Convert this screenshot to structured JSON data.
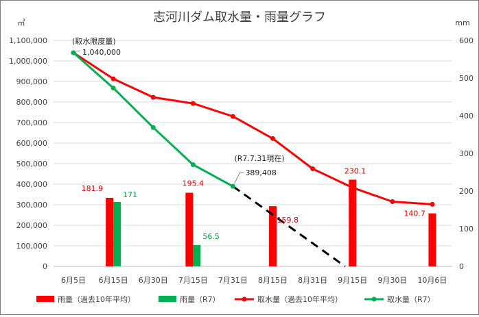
{
  "chart_data": {
    "type": "bar",
    "title": "志河川ダム取水量・雨量グラフ",
    "left_unit": "㎥",
    "right_unit": "mm",
    "categories": [
      "6月5日",
      "6月15日",
      "6月30日",
      "7月15日",
      "7月31日",
      "8月15日",
      "8月31日",
      "9月15日",
      "9月30日",
      "10月6日"
    ],
    "ylim_left": [
      0,
      1100000
    ],
    "ylim_right": [
      0,
      600
    ],
    "left_ticks": [
      "0",
      "100,000",
      "200,000",
      "300,000",
      "400,000",
      "500,000",
      "600,000",
      "700,000",
      "800,000",
      "900,000",
      "1,000,000",
      "1,100,000"
    ],
    "right_ticks": [
      "0",
      "100",
      "200",
      "300",
      "400",
      "500",
      "600"
    ],
    "series": [
      {
        "name": "雨量（過去10年平均）",
        "kind": "bar",
        "axis": "right",
        "color": "#ff0000",
        "values": [
          null,
          181.9,
          null,
          195.4,
          null,
          159.8,
          null,
          230.1,
          null,
          140.7
        ],
        "labels": [
          "",
          "181.9",
          "",
          "195.4",
          "",
          "159.8",
          "",
          "230.1",
          "",
          "140.7"
        ]
      },
      {
        "name": "雨量（R7）",
        "kind": "bar",
        "axis": "right",
        "color": "#00b050",
        "values": [
          null,
          171,
          null,
          56.5,
          null,
          null,
          null,
          null,
          null,
          null
        ],
        "labels": [
          "",
          "171",
          "",
          "56.5",
          "",
          "",
          "",
          "",
          "",
          ""
        ]
      },
      {
        "name": "取水量（過去10年平均）",
        "kind": "line",
        "axis": "left",
        "color": "#ff0000",
        "values": [
          1040000,
          913000,
          823000,
          793000,
          730000,
          622000,
          475000,
          383000,
          315000,
          302000
        ]
      },
      {
        "name": "取水量（R7）",
        "kind": "line",
        "axis": "left",
        "color": "#00b050",
        "values": [
          1040000,
          868000,
          676000,
          495000,
          389408,
          null,
          null,
          null,
          null,
          null
        ]
      }
    ],
    "projection": {
      "style": "dashed",
      "color": "#000000",
      "from_category": "7月31日",
      "from_value": 389408,
      "to_category": "9月15日",
      "to_value": 0
    },
    "annotations": {
      "limit_label": "(取水限度量)",
      "limit_value": "1,040,000",
      "current_label": "(R7.7.31現在)",
      "current_value": "389,408"
    },
    "grid": "horizontal",
    "legend_position": "bottom"
  }
}
